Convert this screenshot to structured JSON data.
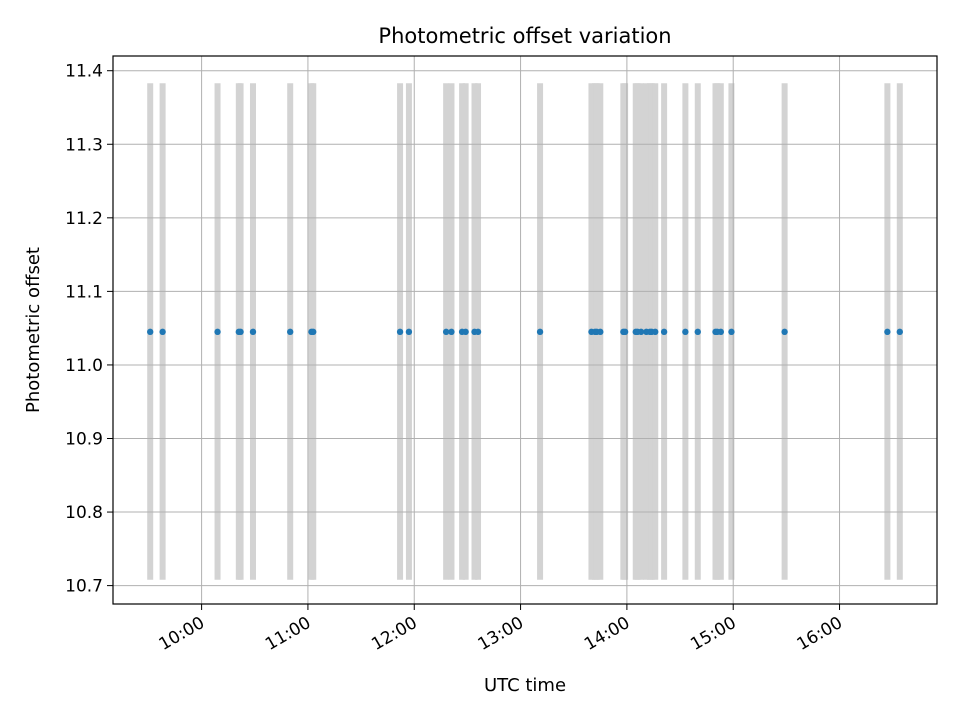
{
  "chart_data": {
    "type": "scatter",
    "title": "Photometric offset variation",
    "xlabel": "UTC time",
    "ylabel": "Photometric offset",
    "x_axis_kind": "time",
    "xlim": [
      "09:10",
      "16:55"
    ],
    "ylim": [
      10.675,
      11.42
    ],
    "xticks": [
      "10:00",
      "11:00",
      "12:00",
      "13:00",
      "14:00",
      "15:00",
      "16:00"
    ],
    "yticks": [
      10.7,
      10.8,
      10.9,
      11.0,
      11.1,
      11.2,
      11.3,
      11.4
    ],
    "ytick_labels": [
      "10.7",
      "10.8",
      "10.9",
      "11.0",
      "11.1",
      "11.2",
      "11.3",
      "11.4"
    ],
    "grid": true,
    "band_range": [
      10.708,
      11.383
    ],
    "point_color": "#1f77b4",
    "band_color": "#d3d3d3",
    "series": [
      {
        "x": [
          "09:31",
          "09:38",
          "10:09",
          "10:21",
          "10:22",
          "10:29",
          "10:50",
          "11:02",
          "11:03",
          "11:52",
          "11:57",
          "12:18",
          "12:21",
          "12:27",
          "12:29",
          "12:34",
          "12:36",
          "13:11",
          "13:40",
          "13:42",
          "13:43",
          "13:45",
          "13:58",
          "13:59",
          "14:05",
          "14:06",
          "14:08",
          "14:11",
          "14:13",
          "14:14",
          "14:16",
          "14:21",
          "14:33",
          "14:40",
          "14:50",
          "14:51",
          "14:53",
          "14:59",
          "15:29",
          "16:27",
          "16:34"
        ],
        "y": [
          11.045,
          11.045,
          11.045,
          11.045,
          11.045,
          11.045,
          11.045,
          11.045,
          11.045,
          11.045,
          11.045,
          11.045,
          11.045,
          11.045,
          11.045,
          11.045,
          11.045,
          11.045,
          11.045,
          11.045,
          11.045,
          11.045,
          11.045,
          11.045,
          11.045,
          11.045,
          11.045,
          11.045,
          11.045,
          11.045,
          11.045,
          11.045,
          11.045,
          11.045,
          11.045,
          11.045,
          11.045,
          11.045,
          11.045,
          11.045,
          11.045
        ]
      }
    ]
  }
}
